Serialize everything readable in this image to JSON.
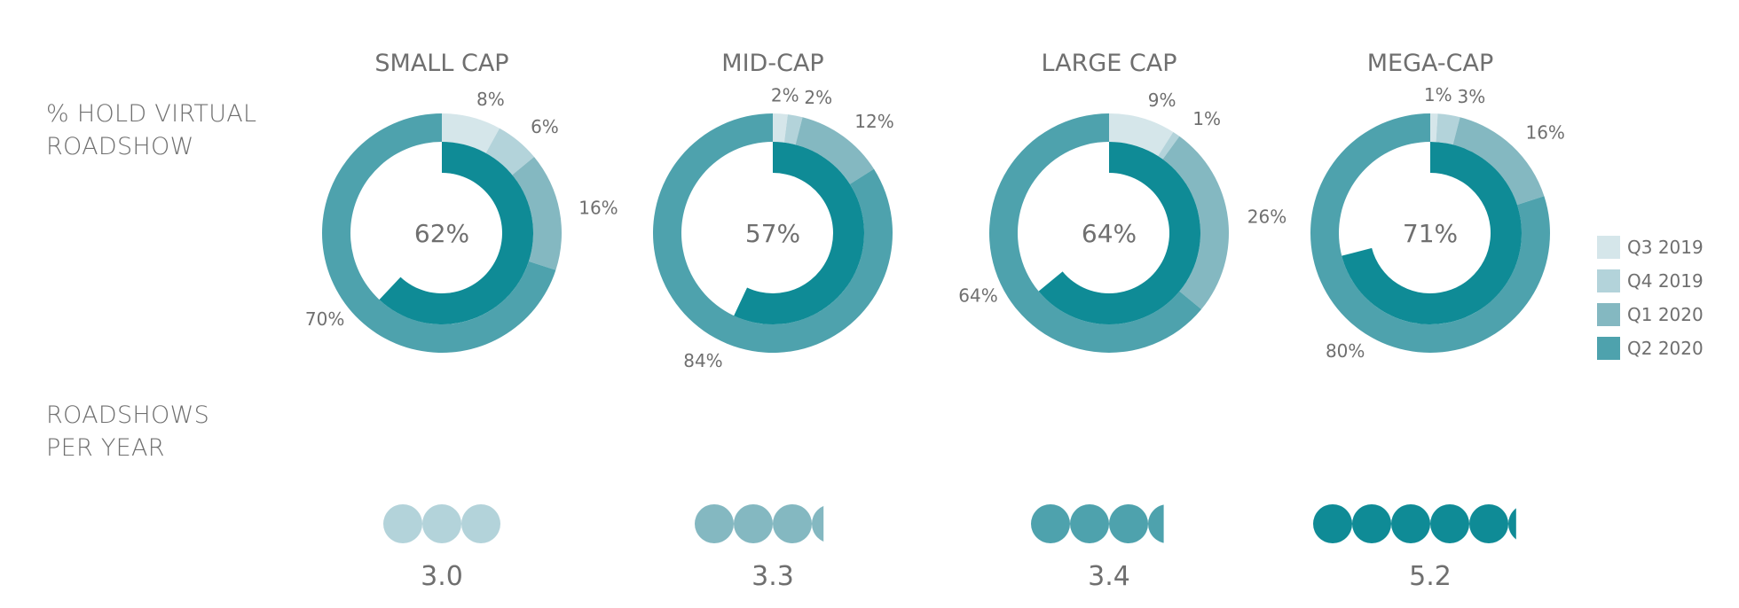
{
  "row_labels": {
    "virtual": [
      "% HOLD VIRTUAL",
      "ROADSHOW"
    ],
    "per_year": [
      "ROADSHOWS",
      "PER YEAR"
    ]
  },
  "colors": {
    "Q3 2019": "#d5e6ea",
    "Q4 2019": "#b3d3da",
    "Q1 2020": "#84b8c1",
    "Q2 2020": "#4ea2ad",
    "inner": "#0f8b96"
  },
  "chart_data": {
    "type": "radial-bar",
    "legend": [
      "Q3 2019",
      "Q4 2019",
      "Q1 2020",
      "Q2 2020"
    ],
    "legend_position": "right",
    "groups": [
      {
        "title": "SMALL CAP",
        "quarters": [
          {
            "q": "Q3 2019",
            "value": 8
          },
          {
            "q": "Q4 2019",
            "value": 6
          },
          {
            "q": "Q1 2020",
            "value": 16
          },
          {
            "q": "Q2 2020",
            "value": 70
          }
        ],
        "center_value": 62,
        "roadshows_per_year": 3.0,
        "roadshows_label": "3.0"
      },
      {
        "title": "MID-CAP",
        "quarters": [
          {
            "q": "Q3 2019",
            "value": 2
          },
          {
            "q": "Q4 2019",
            "value": 2
          },
          {
            "q": "Q1 2020",
            "value": 12
          },
          {
            "q": "Q2 2020",
            "value": 84
          }
        ],
        "center_value": 57,
        "roadshows_per_year": 3.3,
        "roadshows_label": "3.3"
      },
      {
        "title": "LARGE CAP",
        "quarters": [
          {
            "q": "Q3 2019",
            "value": 9
          },
          {
            "q": "Q4 2019",
            "value": 1
          },
          {
            "q": "Q1 2020",
            "value": 26
          },
          {
            "q": "Q2 2020",
            "value": 64
          }
        ],
        "center_value": 64,
        "roadshows_per_year": 3.4,
        "roadshows_label": "3.4"
      },
      {
        "title": "MEGA-CAP",
        "quarters": [
          {
            "q": "Q3 2019",
            "value": 1
          },
          {
            "q": "Q4 2019",
            "value": 3
          },
          {
            "q": "Q1 2020",
            "value": 16
          },
          {
            "q": "Q2 2020",
            "value": 80
          }
        ],
        "center_value": 71,
        "roadshows_per_year": 5.2,
        "roadshows_label": "5.2"
      }
    ]
  }
}
